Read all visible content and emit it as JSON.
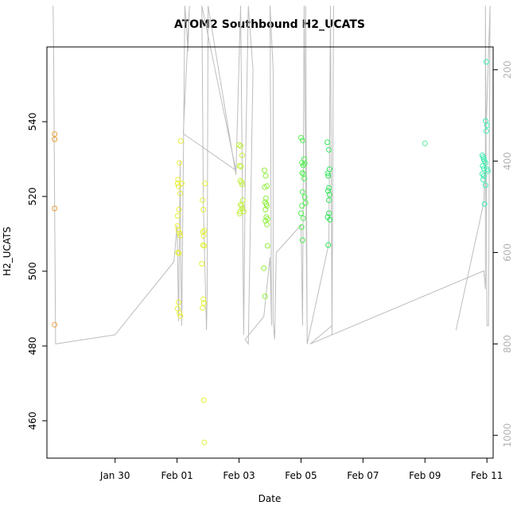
{
  "chart_data": {
    "type": "scatter",
    "title": "ATOM2 Southbound H2_UCATS",
    "xlabel": "Date",
    "ylabel": "H2_UCATS",
    "x_unit": "days (0 = Jan 28)",
    "xlim": [
      -0.2,
      14.2
    ],
    "ylim": [
      450,
      560
    ],
    "y2lim": [
      1050,
      150
    ],
    "x_ticks": [
      {
        "x": 2,
        "label": "Jan 30"
      },
      {
        "x": 4,
        "label": "Feb 01"
      },
      {
        "x": 6,
        "label": "Feb 03"
      },
      {
        "x": 8,
        "label": "Feb 05"
      },
      {
        "x": 10,
        "label": "Feb 07"
      },
      {
        "x": 12,
        "label": "Feb 09"
      },
      {
        "x": 14,
        "label": "Feb 11"
      }
    ],
    "y_ticks": [
      {
        "v": 460,
        "label": "460"
      },
      {
        "v": 480,
        "label": "480"
      },
      {
        "v": 500,
        "label": "500"
      },
      {
        "v": 520,
        "label": "520"
      },
      {
        "v": 540,
        "label": "540"
      }
    ],
    "y2_ticks": [
      {
        "v": 200,
        "label": "200"
      },
      {
        "v": 400,
        "label": "400"
      },
      {
        "v": 600,
        "label": "600"
      },
      {
        "v": 800,
        "label": "800"
      },
      {
        "v": 1000,
        "label": "1000"
      }
    ],
    "grid": false,
    "legend": "none",
    "colors": {
      "orange": "#e8a33d",
      "yellow": "#e9ee3a",
      "yellowgreen": "#c6f23a",
      "green": "#8cf03e",
      "green2": "#52ee52",
      "green3": "#2de85a",
      "teal": "#3eeeb0",
      "altitude_line": "#bdbdbd"
    },
    "series": [
      {
        "color": "#e8a33d",
        "points": [
          [
            0.05,
            536.7
          ],
          [
            0.05,
            535.3
          ],
          [
            0.05,
            516.8
          ],
          [
            0.05,
            485.7
          ]
        ]
      },
      {
        "color": "#e9ee3a",
        "points": [
          [
            4.02,
            523.5
          ],
          [
            4.03,
            524.5
          ],
          [
            4.05,
            522.7
          ],
          [
            4.06,
            516.5
          ],
          [
            4.02,
            514.8
          ],
          [
            4.01,
            512.1
          ],
          [
            4.04,
            511.0
          ],
          [
            4.08,
            510.2
          ],
          [
            4.1,
            509.5
          ],
          [
            4.03,
            505.0
          ],
          [
            4.06,
            504.8
          ],
          [
            4.08,
            529.0
          ],
          [
            4.12,
            534.8
          ],
          [
            4.1,
            520.8
          ],
          [
            4.15,
            523.5
          ],
          [
            4.05,
            491.7
          ],
          [
            4.08,
            488.8
          ],
          [
            4.11,
            488.0
          ],
          [
            4.02,
            490.0
          ]
        ]
      },
      {
        "color": "#e4f23a",
        "points": [
          [
            4.82,
            519.0
          ],
          [
            4.85,
            516.5
          ],
          [
            4.9,
            523.5
          ],
          [
            4.88,
            510.8
          ],
          [
            4.83,
            510.5
          ],
          [
            4.86,
            509.5
          ],
          [
            4.84,
            507.0
          ],
          [
            4.88,
            506.8
          ],
          [
            4.85,
            492.5
          ],
          [
            4.87,
            491.5
          ],
          [
            4.82,
            490.2
          ],
          [
            4.86,
            465.5
          ],
          [
            4.88,
            454.2
          ],
          [
            4.8,
            502.0
          ]
        ]
      },
      {
        "color": "#c0f03e",
        "points": [
          [
            6.0,
            533.8
          ],
          [
            6.05,
            533.5
          ],
          [
            6.1,
            531.0
          ],
          [
            6.02,
            528.2
          ],
          [
            6.06,
            528.0
          ],
          [
            6.04,
            524.2
          ],
          [
            6.08,
            523.8
          ],
          [
            6.1,
            523.2
          ],
          [
            6.12,
            519.0
          ],
          [
            6.05,
            517.8
          ],
          [
            6.08,
            517.5
          ],
          [
            6.1,
            516.8
          ],
          [
            6.04,
            516.0
          ],
          [
            6.02,
            515.4
          ],
          [
            6.15,
            516.0
          ]
        ]
      },
      {
        "color": "#8ff03e",
        "points": [
          [
            6.82,
            527.0
          ],
          [
            6.86,
            525.5
          ],
          [
            6.9,
            522.8
          ],
          [
            6.83,
            522.5
          ],
          [
            6.87,
            519.5
          ],
          [
            6.84,
            518.5
          ],
          [
            6.88,
            518.0
          ],
          [
            6.9,
            517.5
          ],
          [
            6.85,
            516.5
          ],
          [
            6.88,
            514.5
          ],
          [
            6.92,
            514.0
          ],
          [
            6.85,
            513.5
          ],
          [
            6.9,
            512.5
          ],
          [
            6.92,
            506.8
          ],
          [
            6.8,
            500.8
          ],
          [
            6.84,
            493.3
          ]
        ]
      },
      {
        "color": "#52ee52",
        "points": [
          [
            8.0,
            535.7
          ],
          [
            8.05,
            535.0
          ],
          [
            8.1,
            530.0
          ],
          [
            8.03,
            529.0
          ],
          [
            8.07,
            528.3
          ],
          [
            8.12,
            528.8
          ],
          [
            8.04,
            526.3
          ],
          [
            8.08,
            526.0
          ],
          [
            8.1,
            524.8
          ],
          [
            8.05,
            521.2
          ],
          [
            8.12,
            519.8
          ],
          [
            8.03,
            517.5
          ],
          [
            8.15,
            518.3
          ],
          [
            8.0,
            515.5
          ],
          [
            8.07,
            514.2
          ],
          [
            8.02,
            511.8
          ],
          [
            8.05,
            508.3
          ]
        ]
      },
      {
        "color": "#2de85a",
        "points": [
          [
            8.85,
            534.5
          ],
          [
            8.9,
            532.5
          ],
          [
            8.92,
            527.3
          ],
          [
            8.86,
            526.2
          ],
          [
            8.88,
            525.5
          ],
          [
            8.9,
            522.3
          ],
          [
            8.87,
            521.5
          ],
          [
            8.92,
            520.5
          ],
          [
            8.9,
            519.0
          ],
          [
            8.86,
            514.5
          ],
          [
            8.9,
            515.5
          ],
          [
            8.93,
            513.8
          ],
          [
            8.88,
            507.0
          ]
        ]
      },
      {
        "color": "#55eba0",
        "points": [
          [
            12.0,
            534.2
          ]
        ]
      },
      {
        "color": "#3eeeb0",
        "points": [
          [
            13.85,
            531.0
          ],
          [
            13.88,
            530.5
          ],
          [
            13.9,
            530.0
          ],
          [
            13.92,
            529.5
          ],
          [
            13.95,
            529.0
          ],
          [
            13.86,
            528.2
          ],
          [
            13.9,
            527.5
          ],
          [
            14.0,
            527.3
          ],
          [
            14.03,
            526.8
          ],
          [
            13.85,
            526.0
          ],
          [
            13.9,
            525.5
          ],
          [
            13.88,
            524.5
          ],
          [
            13.95,
            523.0
          ],
          [
            13.92,
            518.0
          ],
          [
            13.96,
            540.2
          ],
          [
            14.0,
            539.0
          ],
          [
            13.98,
            537.5
          ],
          [
            13.98,
            556.0
          ]
        ]
      }
    ],
    "altitude_profile": [
      [
        0.0,
        60
      ],
      [
        0.02,
        200
      ],
      [
        0.04,
        400
      ],
      [
        0.06,
        600
      ],
      [
        0.08,
        800
      ],
      [
        2.0,
        780
      ],
      [
        3.9,
        620
      ],
      [
        4.0,
        540
      ],
      [
        4.05,
        750
      ],
      [
        4.1,
        400
      ],
      [
        4.12,
        620
      ],
      [
        4.15,
        760
      ],
      [
        4.25,
        60
      ],
      [
        4.3,
        100
      ],
      [
        4.35,
        160
      ],
      [
        4.4,
        60
      ],
      [
        4.2,
        340
      ],
      [
        5.9,
        420
      ],
      [
        4.8,
        60
      ],
      [
        4.85,
        500
      ],
      [
        4.95,
        770
      ],
      [
        4.97,
        700
      ],
      [
        5.0,
        60
      ],
      [
        5.9,
        430
      ],
      [
        6.05,
        60
      ],
      [
        6.1,
        400
      ],
      [
        6.15,
        780
      ],
      [
        6.2,
        440
      ],
      [
        6.3,
        60
      ],
      [
        6.45,
        200
      ],
      [
        6.3,
        800
      ],
      [
        6.2,
        790
      ],
      [
        6.8,
        740
      ],
      [
        7.0,
        610
      ],
      [
        7.05,
        760
      ],
      [
        7.0,
        60
      ],
      [
        7.1,
        200
      ],
      [
        7.1,
        750
      ],
      [
        7.15,
        790
      ],
      [
        7.2,
        600
      ],
      [
        8.0,
        540
      ],
      [
        8.05,
        760
      ],
      [
        8.1,
        60
      ],
      [
        8.2,
        780
      ],
      [
        8.15,
        60
      ],
      [
        8.2,
        800
      ],
      [
        8.9,
        580
      ],
      [
        8.95,
        60
      ],
      [
        9.0,
        780
      ],
      [
        9.05,
        60
      ],
      [
        9.0,
        760
      ],
      [
        8.3,
        800
      ],
      [
        13.9,
        640
      ],
      [
        13.95,
        680
      ],
      [
        13.95,
        60
      ],
      [
        14.0,
        760
      ],
      [
        14.05,
        760
      ],
      [
        14.1,
        60
      ],
      [
        13.9,
        490
      ],
      [
        13.0,
        770
      ]
    ]
  }
}
